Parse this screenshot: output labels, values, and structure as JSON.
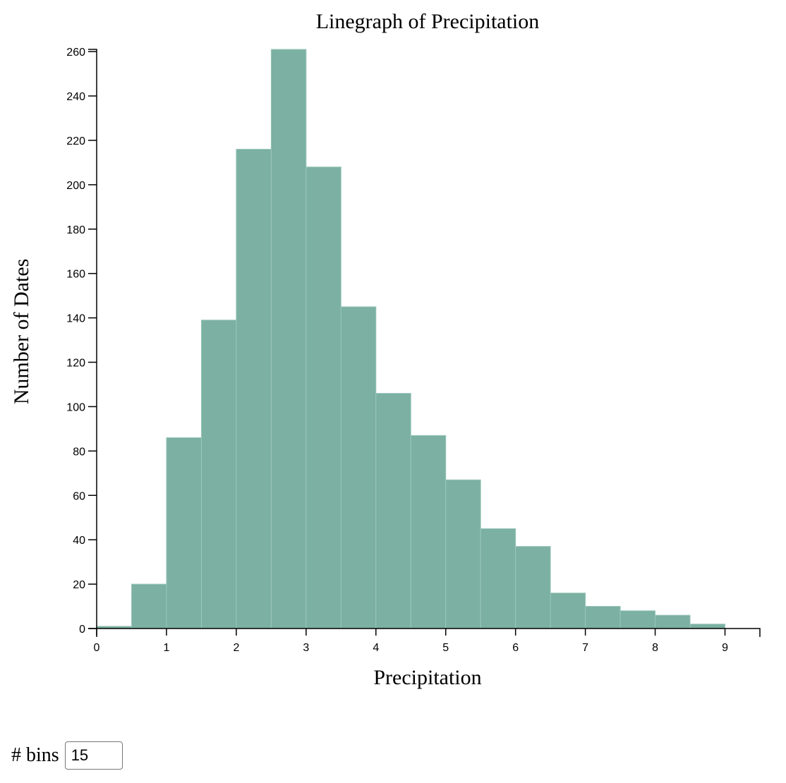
{
  "colors": {
    "bar_fill": "#7bb0a2",
    "bar_stroke": "#9cc7bb",
    "axis": "#000000"
  },
  "chart_data": {
    "type": "bar",
    "title": "Linegraph of Precipitation",
    "xlabel": "Precipitation",
    "ylabel": "Number of Dates",
    "xlim": [
      0,
      9.5
    ],
    "ylim": [
      0,
      261
    ],
    "x_ticks": [
      0,
      1,
      2,
      3,
      4,
      5,
      6,
      7,
      8,
      9
    ],
    "y_ticks": [
      0,
      20,
      40,
      60,
      80,
      100,
      120,
      140,
      160,
      180,
      200,
      220,
      240,
      260
    ],
    "bins": [
      {
        "x0": 0.0,
        "x1": 0.5,
        "value": 1
      },
      {
        "x0": 0.5,
        "x1": 1.0,
        "value": 20
      },
      {
        "x0": 1.0,
        "x1": 1.5,
        "value": 86
      },
      {
        "x0": 1.5,
        "x1": 2.0,
        "value": 139
      },
      {
        "x0": 2.0,
        "x1": 2.5,
        "value": 216
      },
      {
        "x0": 2.5,
        "x1": 3.0,
        "value": 261
      },
      {
        "x0": 3.0,
        "x1": 3.5,
        "value": 208
      },
      {
        "x0": 3.5,
        "x1": 4.0,
        "value": 145
      },
      {
        "x0": 4.0,
        "x1": 4.5,
        "value": 106
      },
      {
        "x0": 4.5,
        "x1": 5.0,
        "value": 87
      },
      {
        "x0": 5.0,
        "x1": 5.5,
        "value": 67
      },
      {
        "x0": 5.5,
        "x1": 6.0,
        "value": 45
      },
      {
        "x0": 6.0,
        "x1": 6.5,
        "value": 37
      },
      {
        "x0": 6.5,
        "x1": 7.0,
        "value": 16
      },
      {
        "x0": 7.0,
        "x1": 7.5,
        "value": 10
      },
      {
        "x0": 7.5,
        "x1": 8.0,
        "value": 8
      },
      {
        "x0": 8.0,
        "x1": 8.5,
        "value": 6
      },
      {
        "x0": 8.5,
        "x1": 9.0,
        "value": 2
      }
    ]
  },
  "controls": {
    "bins_label": "# bins",
    "bins_value": "15"
  }
}
